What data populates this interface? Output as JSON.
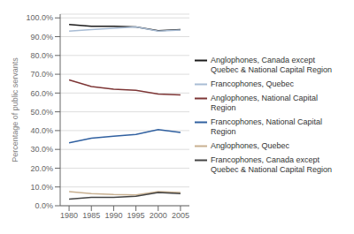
{
  "chart_data": {
    "type": "line",
    "x": [
      1980,
      1985,
      1990,
      1995,
      2000,
      2005
    ],
    "series": [
      {
        "name": "Anglophones, Canada except\nQuebec & National Capital Region",
        "color": "#1a1a1a",
        "values": [
          96.5,
          95.5,
          95.5,
          95.2,
          93.2,
          93.8
        ]
      },
      {
        "name": "Francophones, Quebec",
        "color": "#a8bcd4",
        "values": [
          93.0,
          93.8,
          94.5,
          95.2,
          93.0,
          93.5
        ]
      },
      {
        "name": "Anglophones, National Capital\nRegion",
        "color": "#7d3535",
        "values": [
          67.0,
          63.5,
          62.0,
          61.5,
          59.5,
          59.0
        ]
      },
      {
        "name": "Francophones, National Capital\nRegion",
        "color": "#3060a0",
        "values": [
          33.5,
          36.0,
          37.0,
          38.0,
          40.5,
          39.0
        ]
      },
      {
        "name": "Anglophones, Quebec",
        "color": "#c8b090",
        "values": [
          7.5,
          6.5,
          6.0,
          5.8,
          7.5,
          7.0
        ]
      },
      {
        "name": "Francophones, Canada except\nQuebec & National Capital Region",
        "color": "#444444",
        "values": [
          3.5,
          4.5,
          4.5,
          5.0,
          7.0,
          6.5
        ]
      }
    ],
    "ylabel": "Percentage of public servants",
    "ylim": [
      0,
      102
    ],
    "yticks": [
      {
        "value": 0,
        "label": "0.0%"
      },
      {
        "value": 10,
        "label": "10.0%"
      },
      {
        "value": 20,
        "label": "20.0%"
      },
      {
        "value": 30,
        "label": "30.0%"
      },
      {
        "value": 40,
        "label": "40.0%"
      },
      {
        "value": 50,
        "label": "50.0%"
      },
      {
        "value": 60,
        "label": "60.0%"
      },
      {
        "value": 70,
        "label": "70.0%"
      },
      {
        "value": 80,
        "label": "80.0%"
      },
      {
        "value": 90,
        "label": "90.0%"
      },
      {
        "value": 100,
        "label": "100.0%"
      }
    ],
    "xlim": [
      1978,
      2007
    ],
    "xticks": [
      1980,
      1985,
      1990,
      1995,
      2000,
      2005
    ],
    "grid": true,
    "legend": "right"
  }
}
